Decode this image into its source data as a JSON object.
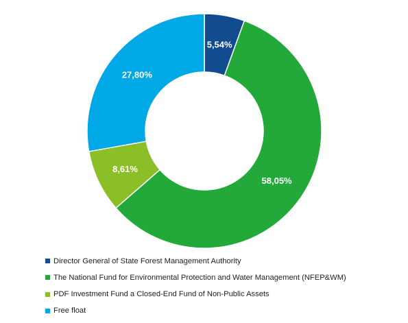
{
  "chart_data": {
    "type": "pie",
    "variant": "donut",
    "title": "",
    "slices": [
      {
        "label": "Director General of State Forest Management Authority",
        "value": 5.54,
        "display": "5,54%",
        "color": "#124C8F"
      },
      {
        "label": "The National Fund for Environmental Protection and Water Management (NFEP&WM)",
        "value": 58.05,
        "display": "58,05%",
        "color": "#23A83A"
      },
      {
        "label": "PDF Investment Fund a Closed-End Fund of Non-Public Assets",
        "value": 8.61,
        "display": "8,61%",
        "color": "#8BBF27"
      },
      {
        "label": "Free float",
        "value": 27.8,
        "display": "27,80%",
        "color": "#00A8E6"
      }
    ],
    "legend": "bottom-left",
    "start_angle": "12 o'clock",
    "direction": "clockwise"
  }
}
